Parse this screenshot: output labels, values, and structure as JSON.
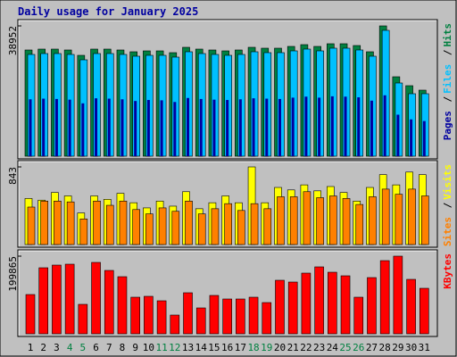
{
  "legend_separator": "/",
  "chart_data": [
    {
      "type": "bar",
      "title": "Daily usage for January 2025",
      "ylim": [
        0,
        38952
      ],
      "yticks": [
        38952
      ],
      "series": [
        {
          "name": "Hits",
          "color": "#008040",
          "values": [
            31749,
            32016,
            32016,
            31749,
            30148,
            32016,
            32016,
            31749,
            31216,
            31482,
            31482,
            30949,
            32550,
            32016,
            31749,
            31482,
            31749,
            32550,
            32283,
            32283,
            32816,
            33350,
            32816,
            33617,
            33617,
            33083,
            31216,
            38952,
            23745,
            21077,
            19743
          ]
        },
        {
          "name": "Files",
          "color": "#00c0ff",
          "values": [
            30415,
            30682,
            30682,
            30415,
            28814,
            30682,
            30682,
            30415,
            29882,
            30148,
            30148,
            29615,
            31216,
            30682,
            30415,
            30148,
            30415,
            31216,
            30949,
            30949,
            31482,
            32016,
            31482,
            32283,
            32283,
            31749,
            29882,
            37618,
            21877,
            18676,
            18676
          ]
        },
        {
          "name": "Pages",
          "color": "#0000a0",
          "values": [
            17000,
            17200,
            17100,
            16900,
            15800,
            17300,
            17200,
            17000,
            16500,
            16800,
            16700,
            16200,
            17400,
            17100,
            16900,
            16800,
            17000,
            17300,
            17200,
            17100,
            17500,
            17800,
            17500,
            17900,
            17800,
            17600,
            16600,
            18200,
            12400,
            11000,
            10500
          ]
        }
      ]
    },
    {
      "type": "bar",
      "ylim": [
        0,
        843
      ],
      "yticks": [
        843
      ],
      "series": [
        {
          "name": "Visits",
          "color": "#ffff00",
          "values": [
            500,
            482,
            565,
            528,
            343,
            528,
            491,
            556,
            454,
            398,
            472,
            417,
            574,
            389,
            454,
            528,
            454,
            843,
            454,
            620,
            593,
            648,
            583,
            630,
            565,
            472,
            620,
            759,
            648,
            787,
            759
          ]
        },
        {
          "name": "Sites",
          "color": "#ff8000",
          "values": [
            407,
            472,
            472,
            463,
            278,
            472,
            426,
            472,
            380,
            333,
            398,
            361,
            472,
            333,
            389,
            444,
            370,
            444,
            389,
            519,
            519,
            574,
            509,
            528,
            500,
            435,
            519,
            602,
            546,
            602,
            528
          ]
        }
      ]
    },
    {
      "type": "bar",
      "ylim": [
        0,
        199865
      ],
      "yticks": [
        199865
      ],
      "categories": [
        "1",
        "2",
        "3",
        "4",
        "5",
        "6",
        "7",
        "8",
        "9",
        "10",
        "11",
        "12",
        "13",
        "14",
        "15",
        "16",
        "17",
        "18",
        "19",
        "20",
        "21",
        "22",
        "23",
        "24",
        "25",
        "26",
        "27",
        "28",
        "29",
        "30",
        "31"
      ],
      "category_colors": [
        "#000000",
        "#000000",
        "#000000",
        "#008040",
        "#008040",
        "#000000",
        "#000000",
        "#000000",
        "#000000",
        "#000000",
        "#008040",
        "#008040",
        "#000000",
        "#000000",
        "#000000",
        "#000000",
        "#000000",
        "#008040",
        "#008040",
        "#000000",
        "#000000",
        "#000000",
        "#000000",
        "#000000",
        "#008040",
        "#008040",
        "#000000",
        "#000000",
        "#000000",
        "#000000",
        "#000000"
      ],
      "series": [
        {
          "name": "KBytes",
          "color": "#ff0000",
          "values": [
            101068,
            169978,
            176869,
            179166,
            75801,
            183760,
            163087,
            147008,
            94177,
            96474,
            84989,
            48237,
            105662,
            66613,
            98771,
            89583,
            89583,
            94177,
            80395,
            137820,
            133226,
            156196,
            172275,
            158493,
            149305,
            94177,
            144711,
            188354,
            199865,
            140117,
            117147
          ]
        }
      ]
    }
  ]
}
